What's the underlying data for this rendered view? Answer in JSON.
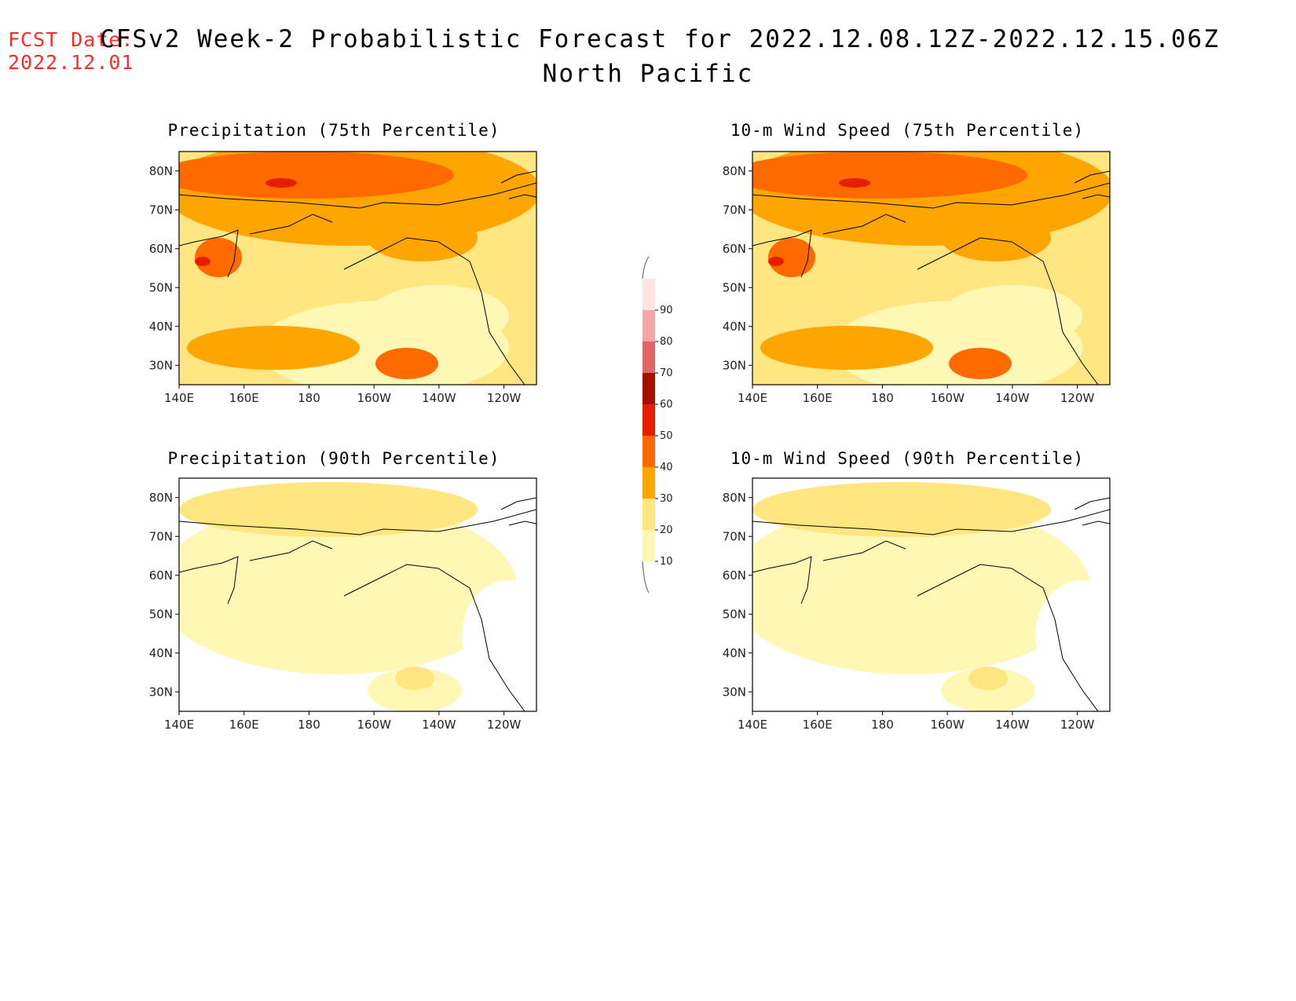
{
  "header": {
    "fcst_label": "FCST Date:",
    "fcst_date": "2022.12.01",
    "title": "CFSv2 Week-2 Probabilistic Forecast for 2022.12.08.12Z-2022.12.15.06Z",
    "region": "North Pacific"
  },
  "lon_ticks": [
    "140E",
    "160E",
    "180",
    "160W",
    "140W",
    "120W"
  ],
  "lat_ticks": [
    "80N",
    "70N",
    "60N",
    "50N",
    "40N",
    "30N"
  ],
  "panels": [
    {
      "id": "precip75",
      "title": "Precipitation (75th Percentile)",
      "level": "high"
    },
    {
      "id": "wind75",
      "title": "10-m Wind Speed (75th Percentile)",
      "level": "high"
    },
    {
      "id": "precip90",
      "title": "Precipitation (90th Percentile)",
      "level": "low"
    },
    {
      "id": "wind90",
      "title": "10-m Wind Speed (90th Percentile)",
      "level": "low"
    }
  ],
  "colorbar": {
    "levels": [
      "10",
      "20",
      "30",
      "40",
      "50",
      "60",
      "70",
      "80",
      "90"
    ],
    "colors": [
      "#fff8b4",
      "#ffe680",
      "#ffa500",
      "#ff6a00",
      "#e61e00",
      "#a50f00",
      "#e06666",
      "#f2a6a6",
      "#ffe4e4"
    ]
  }
}
